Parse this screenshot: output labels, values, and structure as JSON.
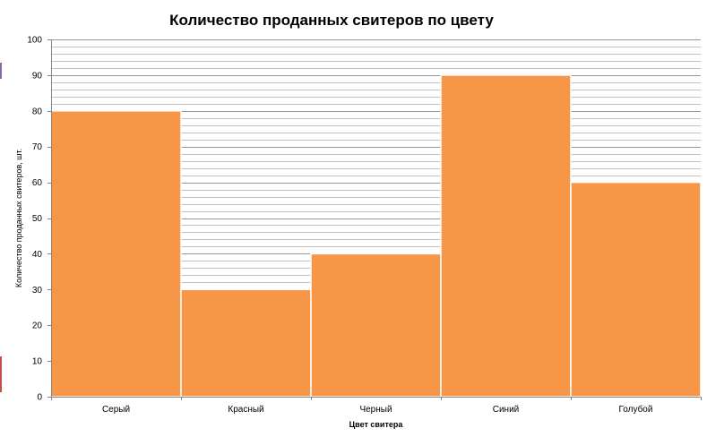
{
  "chart_data": {
    "type": "bar",
    "title": "Количество проданных свитеров по цвету",
    "xlabel": "Цвет свитера",
    "ylabel": "Количество проданных свитеров, шт.",
    "categories": [
      "Серый",
      "Красный",
      "Черный",
      "Синий",
      "Голубой"
    ],
    "values": [
      80,
      30,
      40,
      90,
      60
    ],
    "ylim": [
      0,
      100
    ],
    "yticks": [
      "0",
      "10",
      "20",
      "30",
      "40",
      "50",
      "60",
      "70",
      "80",
      "90",
      "100"
    ],
    "grid": true,
    "legend": "none",
    "colors": {
      "bar": "#F79646",
      "bar_border": "#ffffff",
      "grid": "#8c8c8c",
      "axis": "#868686"
    }
  }
}
